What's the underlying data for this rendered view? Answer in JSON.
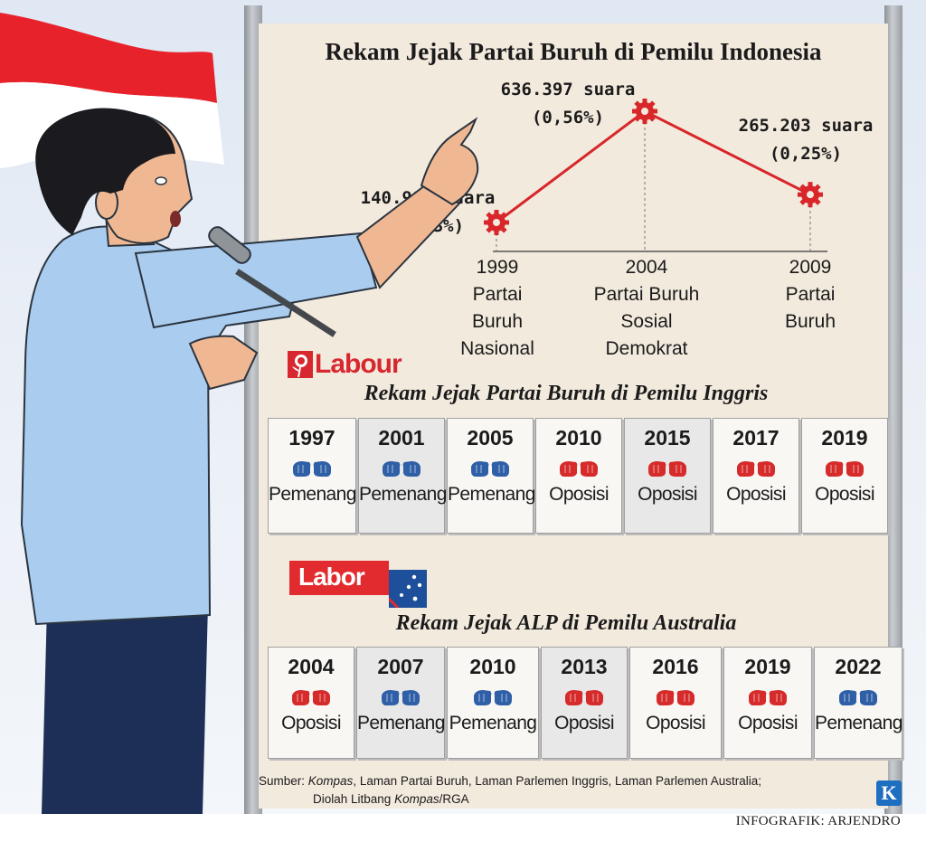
{
  "title_main": "Rekam Jejak Partai Buruh di Pemilu Indonesia",
  "indonesia": {
    "points": [
      {
        "year": "1999",
        "votes": "140.980 suara",
        "pct": "(0,13%)",
        "value": 140980,
        "party": [
          "Partai",
          "Buruh",
          "Nasional"
        ]
      },
      {
        "year": "2004",
        "votes": "636.397 suara",
        "pct": "(0,56%)",
        "value": 636397,
        "party": [
          "Partai Buruh",
          "Sosial",
          "Demokrat"
        ]
      },
      {
        "year": "2009",
        "votes": "265.203 suara",
        "pct": "(0,25%)",
        "value": 265203,
        "party": [
          "Partai",
          "Buruh"
        ]
      }
    ]
  },
  "uk": {
    "logo_text": "Labour",
    "title": "Rekam Jejak Partai Buruh di Pemilu Inggris",
    "results": [
      {
        "year": "1997",
        "result": "Pemenang",
        "win": true
      },
      {
        "year": "2001",
        "result": "Pemenang",
        "win": true
      },
      {
        "year": "2005",
        "result": "Pemenang",
        "win": true
      },
      {
        "year": "2010",
        "result": "Oposisi",
        "win": false
      },
      {
        "year": "2015",
        "result": "Oposisi",
        "win": false
      },
      {
        "year": "2017",
        "result": "Oposisi",
        "win": false
      },
      {
        "year": "2019",
        "result": "Oposisi",
        "win": false
      }
    ]
  },
  "au": {
    "logo_text": "Labor",
    "title": "Rekam Jejak ALP di Pemilu Australia",
    "results": [
      {
        "year": "2004",
        "result": "Oposisi",
        "win": false
      },
      {
        "year": "2007",
        "result": "Pemenang",
        "win": true
      },
      {
        "year": "2010",
        "result": "Pemenang",
        "win": true
      },
      {
        "year": "2013",
        "result": "Oposisi",
        "win": false
      },
      {
        "year": "2016",
        "result": "Oposisi",
        "win": false
      },
      {
        "year": "2019",
        "result": "Oposisi",
        "win": false
      },
      {
        "year": "2022",
        "result": "Pemenang",
        "win": true
      }
    ]
  },
  "source": {
    "prefix": "Sumber: ",
    "kompas": "Kompas",
    "rest": ", Laman Partai Buruh, Laman Parlemen Inggris, Laman Parlemen Australia;",
    "line2_prefix": "Diolah Litbang ",
    "line2_kompas": "Kompas",
    "line2_rest": "/RGA"
  },
  "kompas_logo": "K",
  "credit": "INFOGRAFIK: ARJENDRO",
  "colors": {
    "win": "#2f5fa7",
    "lose": "#d62b2b",
    "line": "#d8262a",
    "labour": "#d7282f",
    "labor": "#e12b2f",
    "board": "#f3eade"
  },
  "icons": {
    "win": "blue-fists-icon",
    "lose": "red-fists-icon",
    "marker": "gear-marker-icon"
  }
}
